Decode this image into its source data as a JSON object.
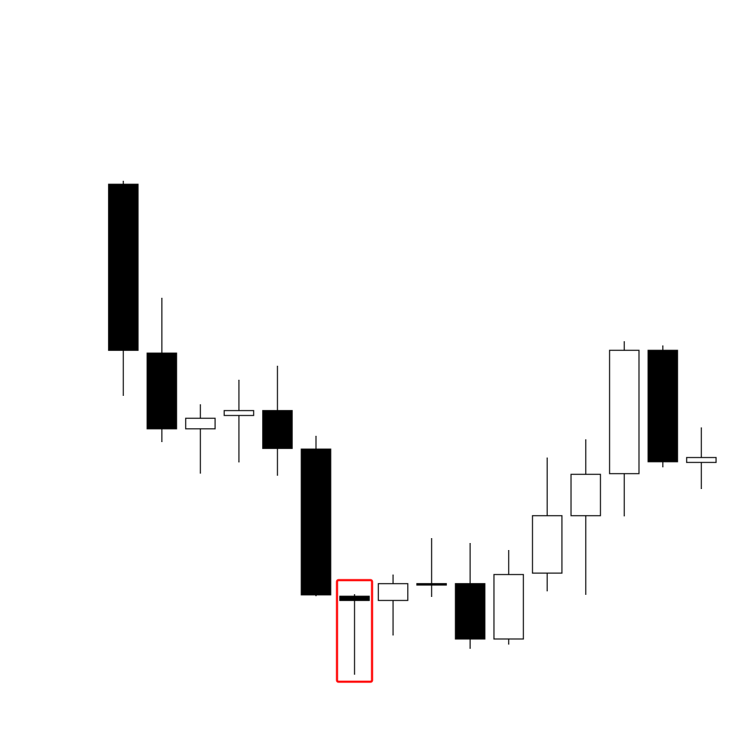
{
  "chart_data": {
    "type": "candlestick",
    "categories": [
      null,
      null,
      null,
      null,
      null,
      null,
      null,
      null,
      null,
      null,
      null,
      null,
      null,
      null,
      null,
      null
    ],
    "open": [
      81.6,
      57.5,
      46.7,
      48.6,
      49.3,
      43.8,
      22.8,
      22.2,
      24.6,
      24.6,
      16.7,
      26.1,
      34.3,
      40.3,
      57.9,
      41.9
    ],
    "high": [
      82.1,
      65.4,
      50.2,
      53.7,
      55.7,
      45.7,
      23.1,
      25.9,
      31.1,
      30.4,
      29.4,
      42.6,
      45.2,
      59.2,
      58.6,
      46.9
    ],
    "low": [
      51.4,
      44.8,
      40.3,
      41.9,
      40.0,
      22.8,
      11.6,
      17.2,
      22.7,
      15.3,
      15.9,
      23.5,
      23.0,
      34.2,
      41.2,
      38.1
    ],
    "close": [
      57.9,
      46.7,
      48.2,
      49.3,
      43.9,
      23.0,
      22.2,
      24.6,
      24.4,
      16.7,
      25.9,
      34.3,
      40.2,
      57.9,
      42.0,
      42.6
    ],
    "up_color": "#ffffff",
    "down_color": "#000000",
    "outline_color": "#000000",
    "highlight": {
      "index": 6,
      "color": "#ff0000"
    },
    "ylim": [
      0,
      107.9
    ]
  }
}
